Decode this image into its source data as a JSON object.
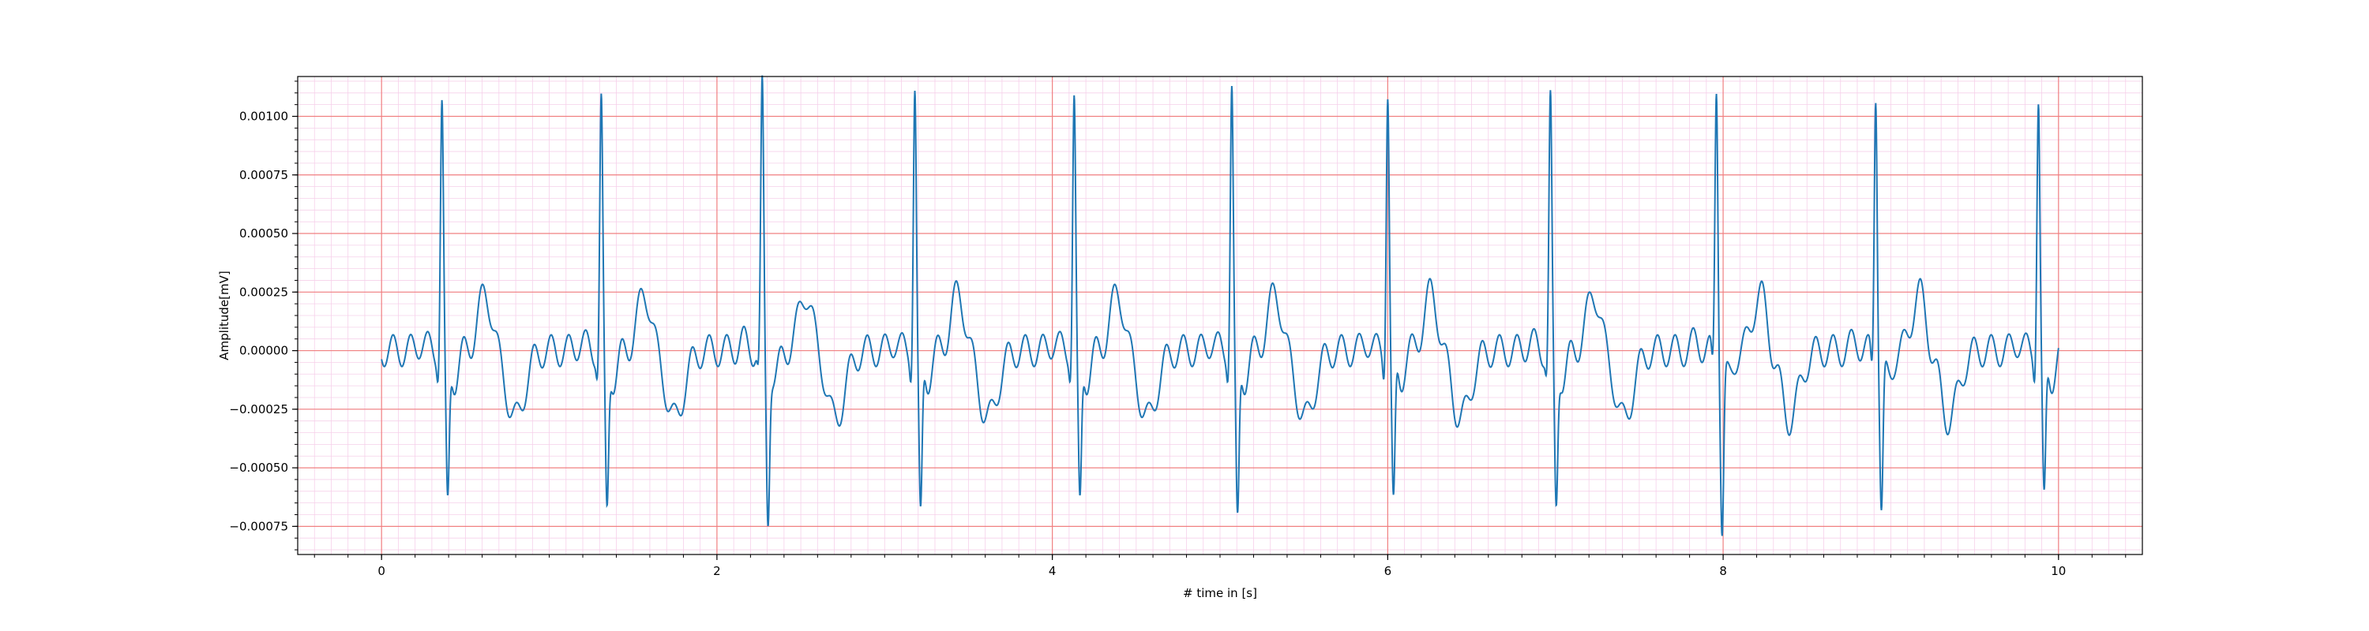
{
  "chart_data": {
    "type": "line",
    "title": "",
    "xlabel": "# time in [s]",
    "ylabel": "Amplitude[mV]",
    "xlim": [
      -0.5,
      10.5
    ],
    "ylim": [
      -0.00087,
      0.00117
    ],
    "x_ticks": [
      0,
      2,
      4,
      6,
      8,
      10
    ],
    "x_tick_labels": [
      "0",
      "2",
      "4",
      "6",
      "8",
      "10"
    ],
    "y_ticks": [
      0.001,
      0.00075,
      0.0005,
      0.00025,
      0.0,
      -0.00025,
      -0.0005,
      -0.00075
    ],
    "y_tick_labels": [
      "0.00100",
      "0.00075",
      "0.00050",
      "0.00025",
      "0.00000",
      "−0.00025",
      "−0.00050",
      "−0.00075"
    ],
    "grid": "on",
    "grid_major_color": "#f08080",
    "grid_minor_color": "#f6d0ea",
    "line_color": "#1f77b4",
    "duration_s": 10,
    "beats": [
      {
        "r": 0.36,
        "rAmp": 0.001,
        "sAmp": -0.00069
      },
      {
        "r": 1.31,
        "rAmp": 0.001,
        "sAmp": -0.00071
      },
      {
        "r": 2.27,
        "rAmp": 0.00105,
        "sAmp": -0.00073
      },
      {
        "r": 3.18,
        "rAmp": 0.00107,
        "sAmp": -0.00075
      },
      {
        "r": 4.13,
        "rAmp": 0.00102,
        "sAmp": -0.00069
      },
      {
        "r": 5.07,
        "rAmp": 0.00107,
        "sAmp": -0.00077
      },
      {
        "r": 6.0,
        "rAmp": 0.00106,
        "sAmp": -0.0007
      },
      {
        "r": 6.97,
        "rAmp": 0.001,
        "sAmp": -0.00069
      },
      {
        "r": 7.96,
        "rAmp": 0.00108,
        "sAmp": -0.00078
      },
      {
        "r": 8.91,
        "rAmp": 0.00106,
        "sAmp": -0.0007
      },
      {
        "r": 9.88,
        "rAmp": 0.00102,
        "sAmp": -0.00068
      }
    ]
  }
}
